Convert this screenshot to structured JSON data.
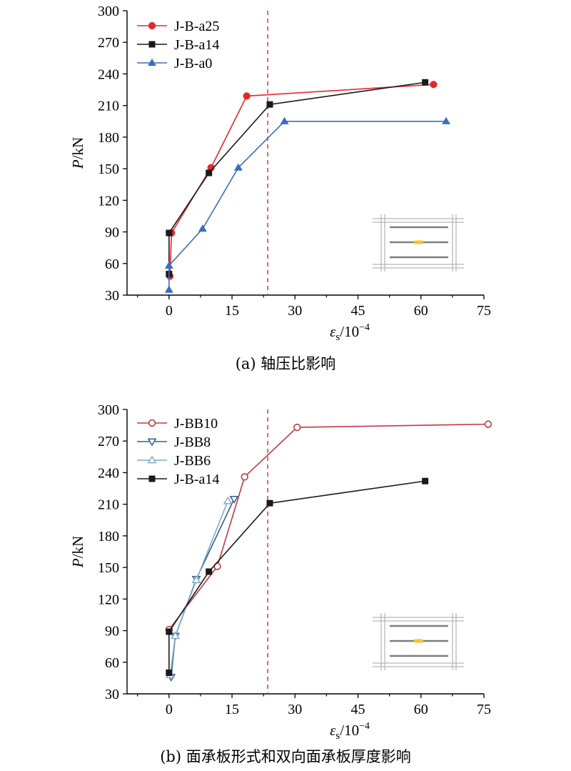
{
  "chart_data": [
    {
      "type": "line",
      "caption": "(a) 轴压比影响",
      "ylabel": "P/kN",
      "xlabel": "εs/10−4",
      "xlim": [
        -10,
        75
      ],
      "ylim": [
        30,
        300
      ],
      "xticks": [
        0,
        15,
        30,
        45,
        60,
        75
      ],
      "yticks": [
        30,
        60,
        90,
        120,
        150,
        180,
        210,
        240,
        270,
        300
      ],
      "threshold_x": 23.5,
      "legend_position": "top-left",
      "series": [
        {
          "name": "J-B-a25",
          "color": "#e8262a",
          "marker": "circle-filled",
          "points": [
            [
              0.2,
              48
            ],
            [
              0.6,
              89
            ],
            [
              10,
              151
            ],
            [
              18.5,
              219
            ],
            [
              63,
              230
            ]
          ]
        },
        {
          "name": "J-B-a14",
          "color": "#1a1a1a",
          "marker": "square-filled",
          "points": [
            [
              0,
              50
            ],
            [
              0,
              89
            ],
            [
              9.5,
              146
            ],
            [
              24,
              211
            ],
            [
              61,
              232
            ]
          ]
        },
        {
          "name": "J-B-a0",
          "color": "#3a70b9",
          "marker": "triangle-filled",
          "points": [
            [
              0,
              35
            ],
            [
              0,
              58
            ],
            [
              8,
              93
            ],
            [
              16.5,
              151
            ],
            [
              27.5,
              195
            ],
            [
              66,
              195
            ]
          ]
        }
      ]
    },
    {
      "type": "line",
      "caption": "(b) 面承板形式和双向面承板厚度影响",
      "ylabel": "P/kN",
      "xlabel": "εs/10−4",
      "xlim": [
        -10,
        75
      ],
      "ylim": [
        30,
        300
      ],
      "xticks": [
        0,
        15,
        30,
        45,
        60,
        75
      ],
      "yticks": [
        30,
        60,
        90,
        120,
        150,
        180,
        210,
        240,
        270,
        300
      ],
      "threshold_x": 23.5,
      "legend_position": "top-left",
      "series": [
        {
          "name": "J-BB10",
          "color": "#c03a45",
          "marker": "circle-open",
          "points": [
            [
              0,
              91
            ],
            [
              11.5,
              151
            ],
            [
              18,
              236
            ],
            [
              30.5,
              283
            ],
            [
              76,
              286
            ]
          ]
        },
        {
          "name": "J-BB8",
          "color": "#325e8c",
          "marker": "triangle-down-open",
          "points": [
            [
              0.5,
              46
            ],
            [
              1.5,
              85
            ],
            [
              6.5,
              139
            ],
            [
              15.5,
              215
            ]
          ]
        },
        {
          "name": "J-BB6",
          "color": "#7faacb",
          "marker": "triangle-up-open",
          "points": [
            [
              0.3,
              48
            ],
            [
              1.5,
              85
            ],
            [
              6.5,
              138
            ],
            [
              14,
              213
            ]
          ]
        },
        {
          "name": "J-B-a14",
          "color": "#1a1a1a",
          "marker": "square-filled",
          "points": [
            [
              0,
              50
            ],
            [
              0,
              89
            ],
            [
              9.5,
              146
            ],
            [
              24,
              211
            ],
            [
              61,
              232
            ]
          ]
        }
      ]
    }
  ]
}
